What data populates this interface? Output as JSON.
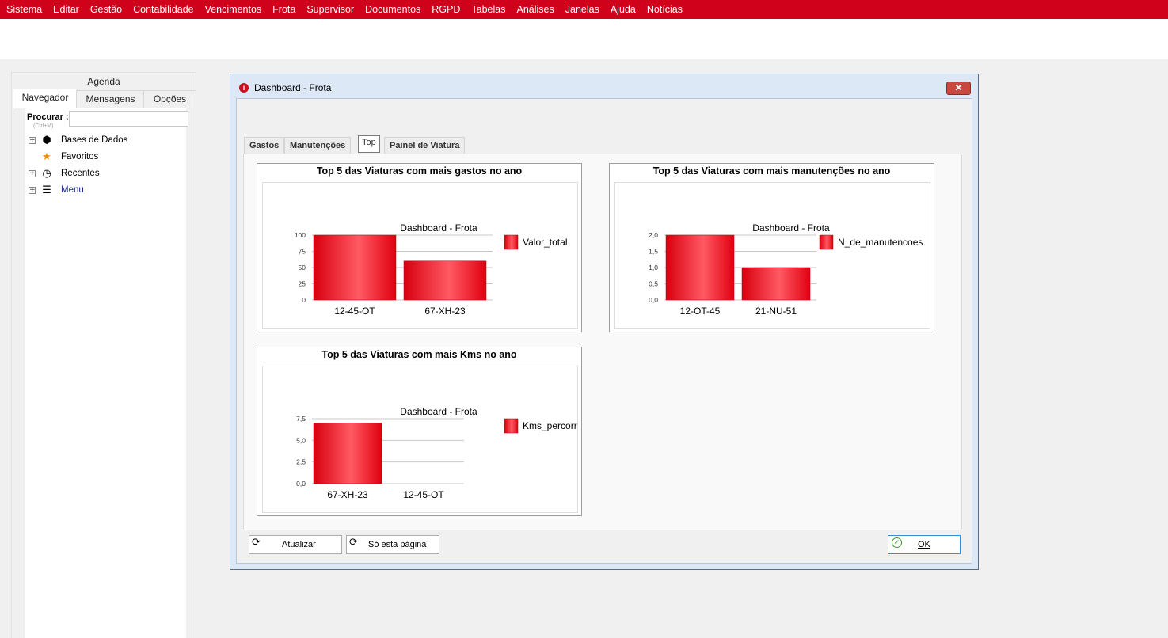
{
  "menubar": [
    "Sistema",
    "Editar",
    "Gestão",
    "Contabilidade",
    "Vencimentos",
    "Frota",
    "Supervisor",
    "Documentos",
    "RGPD",
    "Tabelas",
    "Análises",
    "Janelas",
    "Ajuda",
    "Notícias"
  ],
  "leftpanel": {
    "agenda": "Agenda",
    "tabs": [
      "Navegador",
      "Mensagens",
      "Opções"
    ],
    "search_label": "Procurar :",
    "search_hint": "(Ctrl+M)",
    "search_value": "",
    "tree": [
      {
        "label": "Bases de Dados",
        "icon": "cube-icon",
        "expandable": true
      },
      {
        "label": "Favoritos",
        "icon": "star-icon",
        "expandable": false
      },
      {
        "label": "Recentes",
        "icon": "clock-icon",
        "expandable": true
      },
      {
        "label": "Menu",
        "icon": "menu-icon",
        "expandable": true
      }
    ]
  },
  "dialog": {
    "title": "Dashboard - Frota",
    "close_label": "✕",
    "tabs": [
      "Gastos",
      "Manutenções",
      "Top",
      "Painel de Viatura"
    ],
    "active_tab": "Top",
    "buttons": {
      "refresh": "Atualizar",
      "this_page": "Só esta página",
      "ok": "OK"
    }
  },
  "colors": {
    "brand": "#d0021b",
    "bar": "#e8101f"
  },
  "chart_data": [
    {
      "type": "bar",
      "title": "Top 5 das Viaturas com mais gastos no ano",
      "subtitle": "Dashboard - Frota",
      "categories": [
        "12-45-OT",
        "67-XH-23"
      ],
      "series": [
        {
          "name": "Valor_total",
          "values": [
            100,
            60
          ]
        }
      ],
      "yticks": [
        "0",
        "25",
        "50",
        "75",
        "100"
      ],
      "ylim": [
        0,
        100
      ],
      "grid": true,
      "legend": "right"
    },
    {
      "type": "bar",
      "title": "Top 5 das Viaturas com mais manutenções no ano",
      "subtitle": "Dashboard - Frota",
      "categories": [
        "12-OT-45",
        "21-NU-51"
      ],
      "series": [
        {
          "name": "N_de_manutencoes",
          "values": [
            2,
            1
          ]
        }
      ],
      "yticks": [
        "0,0",
        "0,5",
        "1,0",
        "1,5",
        "2,0"
      ],
      "ylim": [
        0,
        2
      ],
      "grid": true,
      "legend": "right"
    },
    {
      "type": "bar",
      "title": "Top 5 das Viaturas com mais Kms no ano",
      "subtitle": "Dashboard - Frota",
      "categories": [
        "67-XH-23",
        "12-45-OT"
      ],
      "series": [
        {
          "name": "Kms_percorridos",
          "values": [
            7,
            0
          ]
        }
      ],
      "yticks": [
        "0,0",
        "2,5",
        "5,0",
        "7,5"
      ],
      "ylim": [
        0,
        7.5
      ],
      "grid": true,
      "legend": "right"
    }
  ]
}
